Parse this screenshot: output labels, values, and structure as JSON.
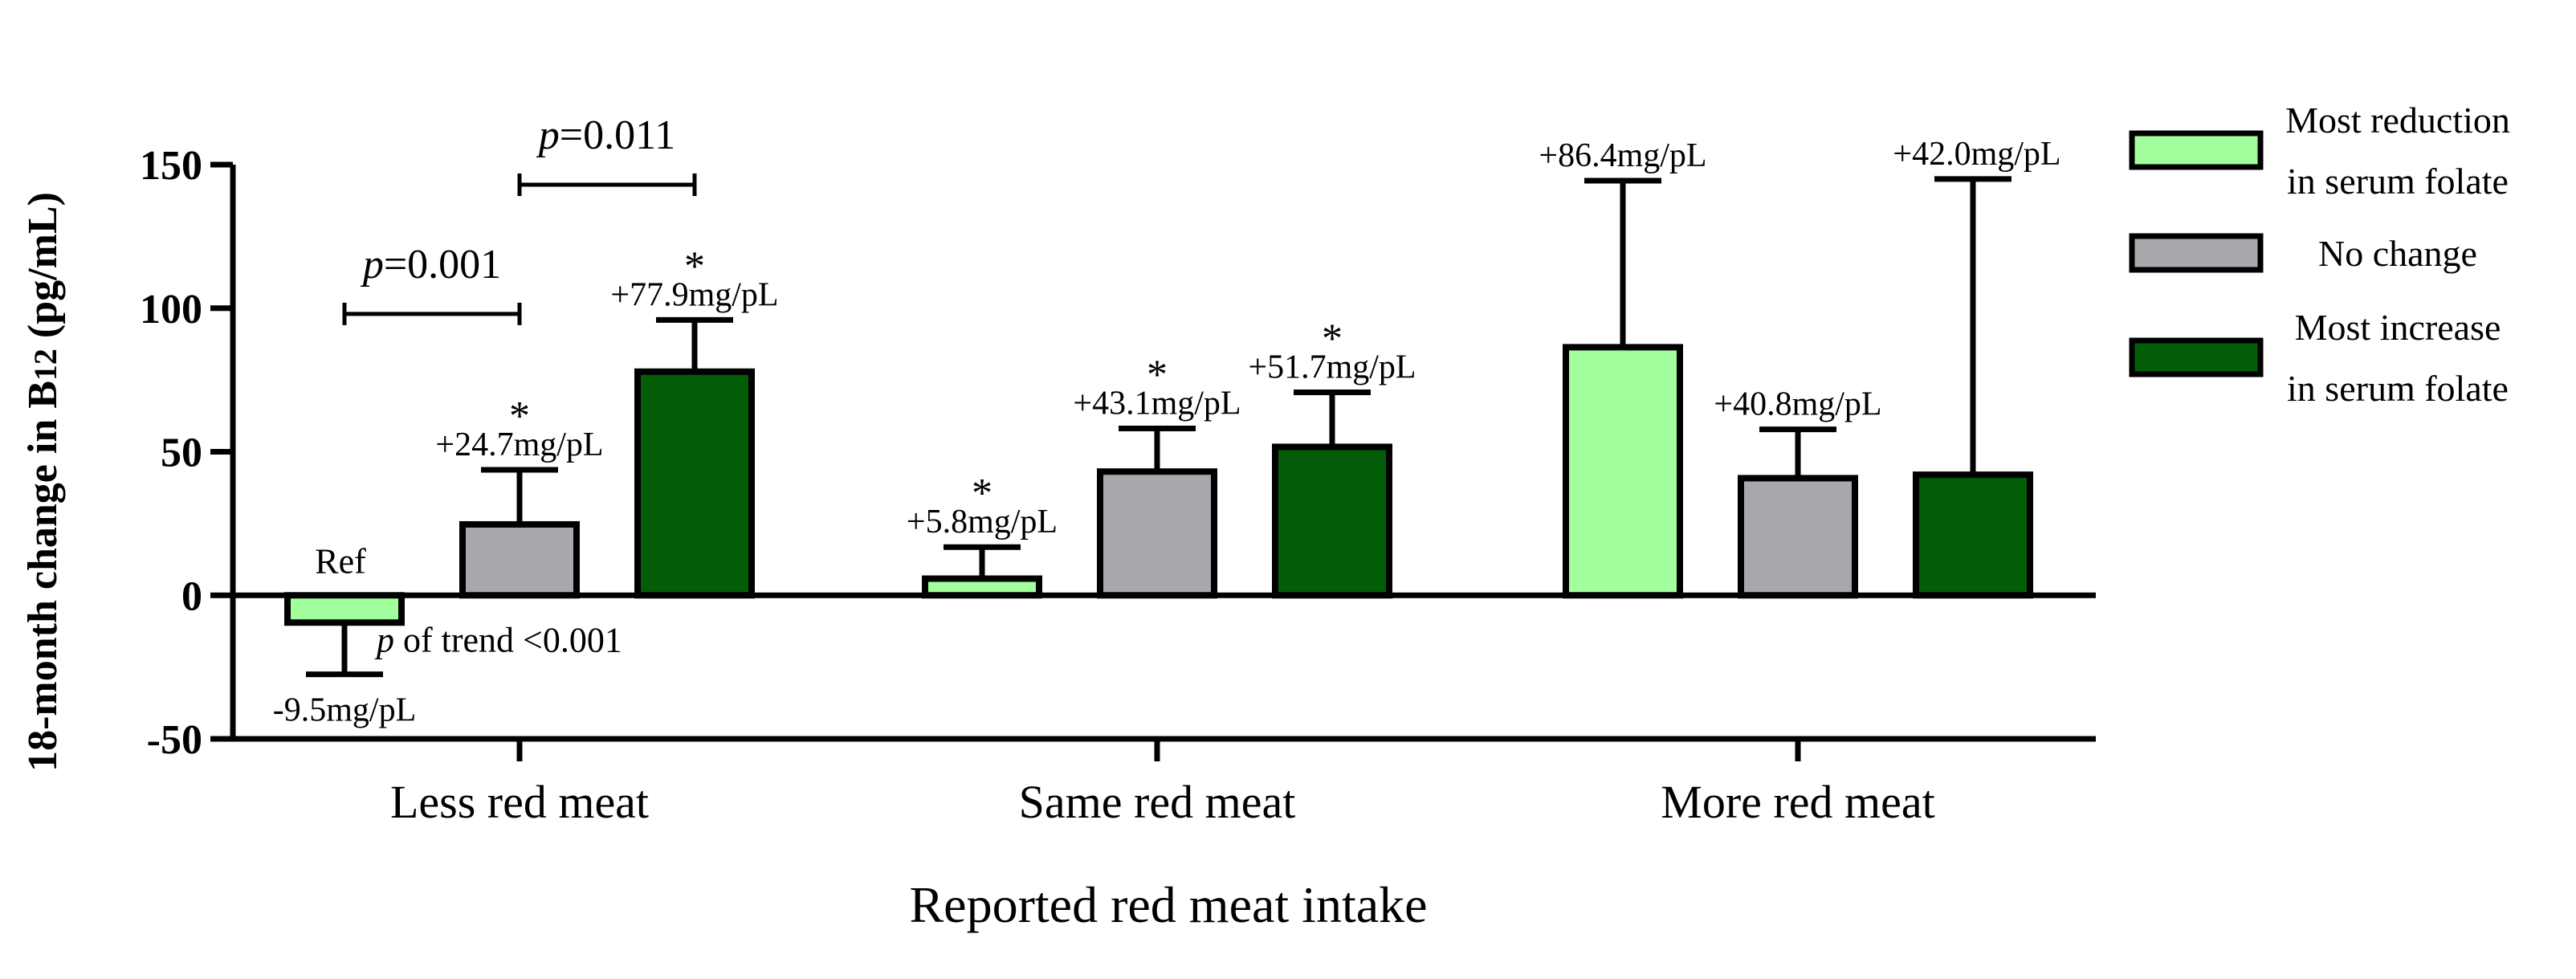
{
  "chart_data": {
    "type": "bar",
    "ylabel_prefix": "18-month change in B",
    "ylabel_sub": "12",
    "ylabel_suffix": " (pg/mL)",
    "xlabel": "Reported red meat intake",
    "ylim": [
      -50,
      150
    ],
    "yticks": [
      -50,
      0,
      50,
      100,
      150
    ],
    "categories": [
      "Less red meat",
      "Same red meat",
      "More red meat"
    ],
    "series": [
      {
        "name": "Most reduction in serum folate",
        "legend_lines": [
          "Most reduction",
          "in serum folate"
        ],
        "color": "#a3ff9e",
        "values": [
          -9.5,
          5.8,
          86.4
        ],
        "errors": [
          18,
          11,
          58
        ],
        "labels": [
          "-9.5mg/pL",
          "+5.8mg/pL",
          "+86.4mg/pL"
        ],
        "stars": [
          false,
          true,
          false
        ]
      },
      {
        "name": "No change",
        "legend_lines": [
          "No change"
        ],
        "color": "#a7a7ac",
        "values": [
          24.7,
          43.1,
          40.8
        ],
        "errors": [
          19,
          15,
          17
        ],
        "labels": [
          "+24.7mg/pL",
          "+43.1mg/pL",
          "+40.8mg/pL"
        ],
        "stars": [
          true,
          true,
          false
        ]
      },
      {
        "name": "Most increase in serum folate",
        "legend_lines": [
          "Most increase",
          "in serum folate"
        ],
        "color": "#035c07",
        "values": [
          77.9,
          51.7,
          42.0
        ],
        "errors": [
          18,
          19,
          103
        ],
        "labels": [
          "+77.9mg/pL",
          "+51.7mg/pL",
          "+42.0mg/pL"
        ],
        "stars": [
          true,
          true,
          false
        ]
      }
    ],
    "annotations": {
      "ref": "Ref",
      "trend_p": "p",
      "trend_text": " of trend <0.001",
      "star": "*",
      "brackets": [
        {
          "p": "p",
          "text": "=0.001",
          "from_series": 0,
          "to_series": 1,
          "y": 98
        },
        {
          "p": "p",
          "text": "=0.011",
          "from_series": 1,
          "to_series": 2,
          "y": 143
        }
      ]
    }
  }
}
